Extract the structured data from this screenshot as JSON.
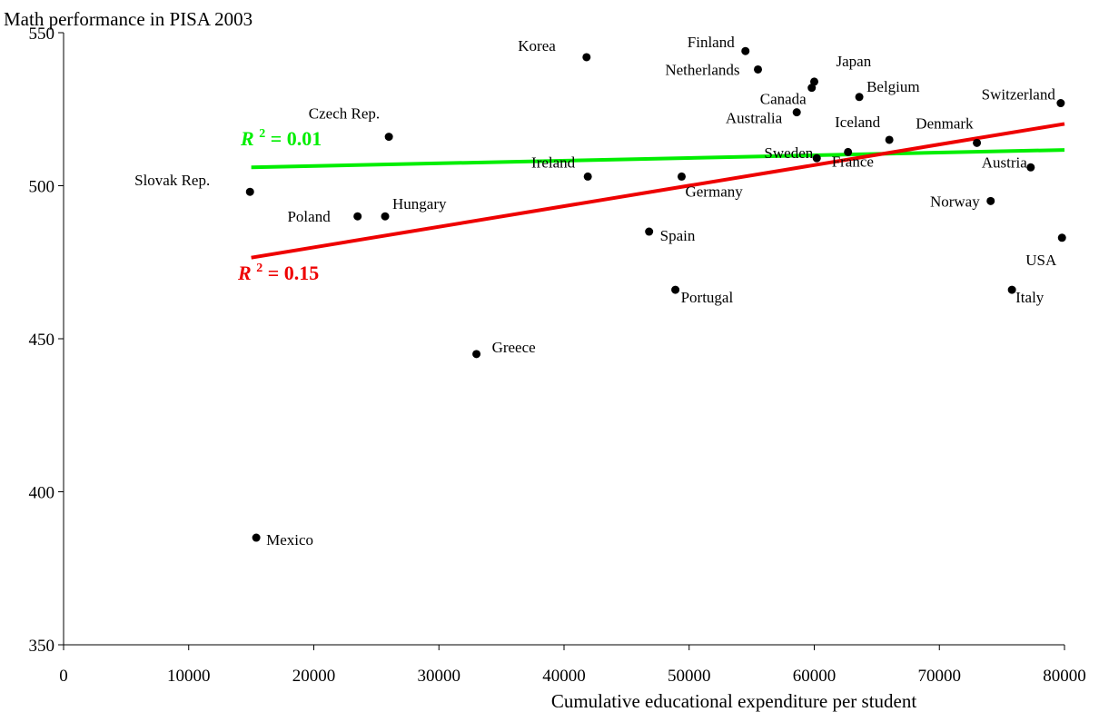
{
  "chart_data": {
    "type": "scatter",
    "title": "",
    "ylabel": "Math performance in PISA 2003",
    "xlabel": "Cumulative educational expenditure per student",
    "xlim": [
      0,
      80000
    ],
    "ylim": [
      350,
      550
    ],
    "xticks": [
      0,
      10000,
      20000,
      30000,
      40000,
      50000,
      60000,
      70000,
      80000
    ],
    "yticks": [
      350,
      400,
      450,
      500,
      550
    ],
    "points": [
      {
        "label": "Finland",
        "x": 54500,
        "y": 544
      },
      {
        "label": "Korea",
        "x": 41800,
        "y": 542
      },
      {
        "label": "Netherlands",
        "x": 55500,
        "y": 538
      },
      {
        "label": "Japan",
        "x": 60000,
        "y": 534
      },
      {
        "label": "Canada",
        "x": 59800,
        "y": 532
      },
      {
        "label": "Belgium",
        "x": 63600,
        "y": 529
      },
      {
        "label": "Switzerland",
        "x": 79700,
        "y": 527
      },
      {
        "label": "Australia",
        "x": 58600,
        "y": 524
      },
      {
        "label": "Czech Rep.",
        "x": 26000,
        "y": 516
      },
      {
        "label": "Iceland",
        "x": 66000,
        "y": 515
      },
      {
        "label": "Denmark",
        "x": 73000,
        "y": 514
      },
      {
        "label": "France",
        "x": 62700,
        "y": 511
      },
      {
        "label": "Sweden",
        "x": 60200,
        "y": 509
      },
      {
        "label": "Austria",
        "x": 77300,
        "y": 506
      },
      {
        "label": "Ireland",
        "x": 41900,
        "y": 503
      },
      {
        "label": "Germany",
        "x": 49400,
        "y": 503
      },
      {
        "label": "Slovak Rep.",
        "x": 14900,
        "y": 498
      },
      {
        "label": "Norway",
        "x": 74100,
        "y": 495
      },
      {
        "label": "Poland",
        "x": 23500,
        "y": 490
      },
      {
        "label": "Hungary",
        "x": 25700,
        "y": 490
      },
      {
        "label": "Spain",
        "x": 46800,
        "y": 485
      },
      {
        "label": "USA",
        "x": 79800,
        "y": 483
      },
      {
        "label": "Portugal",
        "x": 48900,
        "y": 466
      },
      {
        "label": "Italy",
        "x": 75800,
        "y": 466
      },
      {
        "label": "Greece",
        "x": 33000,
        "y": 445
      },
      {
        "label": "Mexico",
        "x": 15400,
        "y": 385
      }
    ],
    "trendlines": [
      {
        "r2_label": "= 0.01",
        "r2_prefix": "R",
        "r2_sup": "2",
        "color": "#00ee00",
        "x": [
          15000,
          80000
        ],
        "y": [
          506,
          511.7
        ]
      },
      {
        "r2_label": "= 0.15",
        "r2_prefix": "R",
        "r2_sup": "2",
        "color": "#ee0000",
        "x": [
          15000,
          80000
        ],
        "y": [
          476.5,
          520.2
        ]
      }
    ]
  }
}
